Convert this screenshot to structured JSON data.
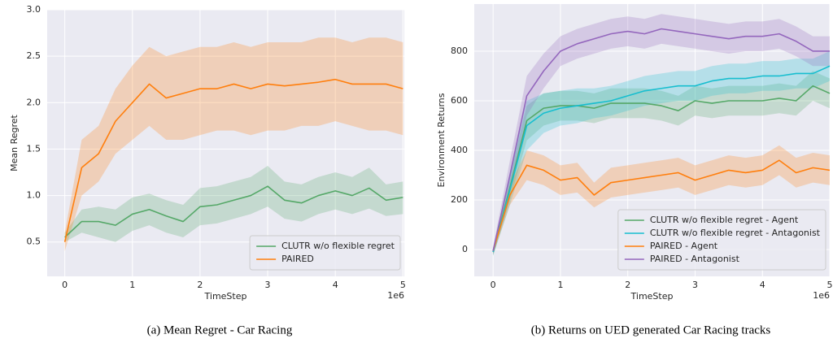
{
  "chart_data": [
    {
      "type": "line",
      "ylabel": "Mean Regret",
      "xlabel": "TimeStep",
      "x_offset_label": "1e6",
      "caption": "(a) Mean Regret - Car Racing",
      "legend": "lower right",
      "grid": true,
      "xlim": [
        -0.26,
        5.02
      ],
      "ylim": [
        0.13,
        3.0
      ],
      "xticks": [
        0,
        1,
        2,
        3,
        4,
        5
      ],
      "yticks": [
        0.5,
        {
          "value": 1,
          "label": "1.0"
        },
        1.5,
        {
          "value": 2,
          "label": "2.0"
        },
        2.5,
        {
          "value": 3,
          "label": "3.0"
        }
      ],
      "x": [
        0,
        0.25,
        0.5,
        0.75,
        1,
        1.25,
        1.5,
        1.75,
        2,
        2.25,
        2.5,
        2.75,
        3,
        3.25,
        3.5,
        3.75,
        4,
        4.25,
        4.5,
        4.75,
        5
      ],
      "series": [
        {
          "name": "CLUTR w/o flexible regret",
          "color": "#55a868",
          "values": [
            0.55,
            0.72,
            0.72,
            0.68,
            0.8,
            0.85,
            0.78,
            0.72,
            0.88,
            0.9,
            0.95,
            1.0,
            1.1,
            0.95,
            0.92,
            1.0,
            1.05,
            1.0,
            1.08,
            0.95,
            0.98
          ],
          "lower": [
            0.5,
            0.6,
            0.55,
            0.5,
            0.62,
            0.68,
            0.6,
            0.55,
            0.68,
            0.7,
            0.75,
            0.8,
            0.88,
            0.75,
            0.72,
            0.8,
            0.85,
            0.8,
            0.86,
            0.78,
            0.8
          ],
          "upper": [
            0.6,
            0.85,
            0.88,
            0.85,
            0.98,
            1.02,
            0.95,
            0.9,
            1.08,
            1.1,
            1.15,
            1.2,
            1.32,
            1.15,
            1.12,
            1.2,
            1.25,
            1.2,
            1.3,
            1.12,
            1.15
          ]
        },
        {
          "name": "PAIRED",
          "color": "#ff7f0e",
          "values": [
            0.5,
            1.3,
            1.45,
            1.8,
            2.0,
            2.2,
            2.05,
            2.1,
            2.15,
            2.15,
            2.2,
            2.15,
            2.2,
            2.18,
            2.2,
            2.22,
            2.25,
            2.2,
            2.2,
            2.2,
            2.15
          ],
          "lower": [
            0.4,
            1.0,
            1.15,
            1.45,
            1.6,
            1.75,
            1.6,
            1.6,
            1.65,
            1.7,
            1.7,
            1.65,
            1.7,
            1.7,
            1.75,
            1.75,
            1.8,
            1.75,
            1.7,
            1.7,
            1.65
          ],
          "upper": [
            0.6,
            1.6,
            1.75,
            2.15,
            2.4,
            2.6,
            2.5,
            2.55,
            2.6,
            2.6,
            2.65,
            2.6,
            2.65,
            2.65,
            2.65,
            2.7,
            2.7,
            2.65,
            2.7,
            2.7,
            2.65
          ]
        }
      ]
    },
    {
      "type": "line",
      "ylabel": "Environment Returns",
      "xlabel": "TimeStep",
      "x_offset_label": "1e6",
      "caption": "(b) Returns on UED generated Car Racing tracks",
      "legend": "lower right",
      "grid": true,
      "xlim": [
        -0.28,
        5.0
      ],
      "ylim": [
        -108,
        990
      ],
      "xticks": [
        0,
        1,
        2,
        3,
        4,
        5
      ],
      "yticks": [
        0,
        200,
        400,
        600,
        800
      ],
      "x": [
        0,
        0.25,
        0.5,
        0.75,
        1,
        1.25,
        1.5,
        1.75,
        2,
        2.25,
        2.5,
        2.75,
        3,
        3.25,
        3.5,
        3.75,
        4,
        4.25,
        4.5,
        4.75,
        5
      ],
      "series": [
        {
          "name": "CLUTR w/o flexible regret - Agent",
          "color": "#55a868",
          "values": [
            -10,
            250,
            520,
            570,
            580,
            580,
            570,
            590,
            590,
            590,
            580,
            560,
            600,
            590,
            600,
            600,
            600,
            610,
            600,
            660,
            630
          ],
          "lower": [
            -25,
            200,
            440,
            500,
            520,
            520,
            510,
            530,
            530,
            530,
            520,
            500,
            540,
            530,
            540,
            540,
            540,
            550,
            540,
            600,
            570
          ],
          "upper": [
            5,
            300,
            580,
            630,
            640,
            640,
            630,
            650,
            650,
            650,
            640,
            620,
            660,
            650,
            660,
            660,
            660,
            670,
            660,
            720,
            690
          ]
        },
        {
          "name": "CLUTR  w/o flexible regret - Antagonist",
          "color": "#17becf",
          "values": [
            -10,
            240,
            500,
            550,
            570,
            580,
            590,
            600,
            620,
            640,
            650,
            660,
            660,
            680,
            690,
            690,
            700,
            700,
            710,
            710,
            740
          ],
          "lower": [
            -25,
            180,
            400,
            470,
            500,
            510,
            530,
            540,
            560,
            580,
            590,
            600,
            600,
            620,
            630,
            630,
            640,
            640,
            650,
            650,
            680
          ],
          "upper": [
            5,
            300,
            600,
            630,
            640,
            650,
            650,
            660,
            680,
            700,
            710,
            720,
            720,
            740,
            750,
            750,
            760,
            760,
            770,
            770,
            800
          ]
        },
        {
          "name": "PAIRED - Agent",
          "color": "#ff7f0e",
          "values": [
            -5,
            220,
            340,
            320,
            280,
            290,
            220,
            270,
            280,
            290,
            300,
            310,
            280,
            300,
            320,
            310,
            320,
            360,
            310,
            330,
            320
          ],
          "lower": [
            -20,
            180,
            280,
            260,
            220,
            230,
            170,
            210,
            220,
            230,
            240,
            250,
            220,
            240,
            260,
            250,
            260,
            300,
            250,
            270,
            260
          ],
          "upper": [
            10,
            260,
            400,
            380,
            340,
            350,
            270,
            330,
            340,
            350,
            360,
            370,
            340,
            360,
            380,
            370,
            380,
            420,
            370,
            390,
            380
          ]
        },
        {
          "name": "PAIRED - Antagonist",
          "color": "#9467bd",
          "values": [
            -5,
            300,
            620,
            720,
            800,
            830,
            850,
            870,
            880,
            870,
            890,
            880,
            870,
            860,
            850,
            860,
            860,
            870,
            840,
            800,
            800
          ],
          "lower": [
            -20,
            240,
            540,
            650,
            740,
            770,
            790,
            810,
            820,
            810,
            830,
            820,
            810,
            800,
            790,
            800,
            800,
            810,
            780,
            740,
            740
          ],
          "upper": [
            10,
            360,
            700,
            790,
            860,
            890,
            910,
            930,
            940,
            930,
            950,
            940,
            930,
            920,
            910,
            920,
            920,
            930,
            900,
            860,
            860
          ]
        }
      ]
    }
  ]
}
